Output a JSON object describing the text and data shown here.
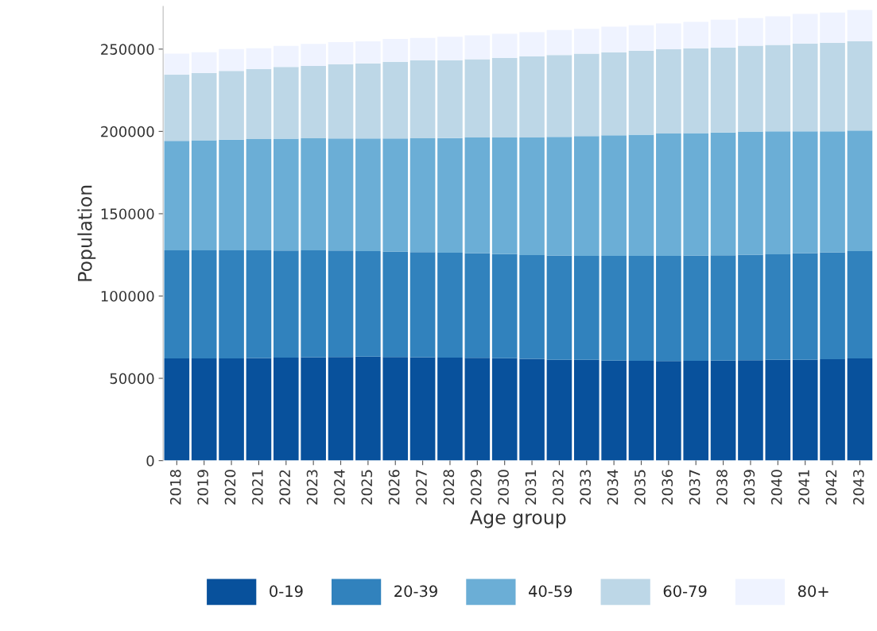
{
  "chart_data": {
    "type": "bar",
    "stacked": true,
    "xlabel": "Age group",
    "ylabel": "Population",
    "legend": "bottom",
    "grid": false,
    "categories": [
      "2018",
      "2019",
      "2020",
      "2021",
      "2022",
      "2023",
      "2024",
      "2025",
      "2026",
      "2027",
      "2028",
      "2029",
      "2030",
      "2031",
      "2032",
      "2033",
      "2034",
      "2035",
      "2036",
      "2037",
      "2038",
      "2039",
      "2040",
      "2041",
      "2042",
      "2043"
    ],
    "ylim": [
      0,
      276000
    ],
    "yticks": [
      0,
      50000,
      100000,
      150000,
      200000,
      250000
    ],
    "series": [
      {
        "name": "0-19",
        "color": "#08519c",
        "values": [
          62100,
          62100,
          62100,
          62300,
          62600,
          62800,
          62900,
          63200,
          62900,
          62800,
          62600,
          62500,
          62200,
          61800,
          61300,
          61200,
          60800,
          60700,
          60500,
          60700,
          60800,
          61000,
          61200,
          61300,
          61600,
          62100
        ]
      },
      {
        "name": "20-39",
        "color": "#3182bd",
        "values": [
          65700,
          65700,
          65700,
          65400,
          65000,
          64900,
          64700,
          64100,
          64100,
          63900,
          63700,
          63600,
          63300,
          63100,
          63300,
          63200,
          63600,
          63700,
          63900,
          63900,
          63900,
          64100,
          64200,
          64800,
          65000,
          65200
        ]
      },
      {
        "name": "40-59",
        "color": "#6baed6",
        "values": [
          66500,
          66800,
          67200,
          67600,
          68000,
          68100,
          68100,
          68400,
          68700,
          69100,
          69600,
          70200,
          70800,
          71400,
          72100,
          72800,
          73200,
          73600,
          74300,
          74400,
          74600,
          74800,
          74600,
          73900,
          73400,
          73200
        ]
      },
      {
        "name": "60-79",
        "color": "#bdd7e7",
        "values": [
          40300,
          40900,
          41700,
          42600,
          43500,
          44000,
          45100,
          45600,
          46600,
          47300,
          47400,
          47600,
          48400,
          49400,
          49700,
          50000,
          50500,
          51000,
          51200,
          51500,
          51600,
          52200,
          52600,
          53400,
          53900,
          54200
        ]
      },
      {
        "name": "80+",
        "color": "#eff3ff",
        "values": [
          12600,
          12600,
          13300,
          12600,
          12900,
          13400,
          13400,
          13400,
          13900,
          13700,
          14200,
          14400,
          14600,
          14600,
          15200,
          15100,
          15500,
          15500,
          15700,
          16000,
          17000,
          16800,
          17300,
          18000,
          18300,
          19100
        ]
      }
    ]
  }
}
